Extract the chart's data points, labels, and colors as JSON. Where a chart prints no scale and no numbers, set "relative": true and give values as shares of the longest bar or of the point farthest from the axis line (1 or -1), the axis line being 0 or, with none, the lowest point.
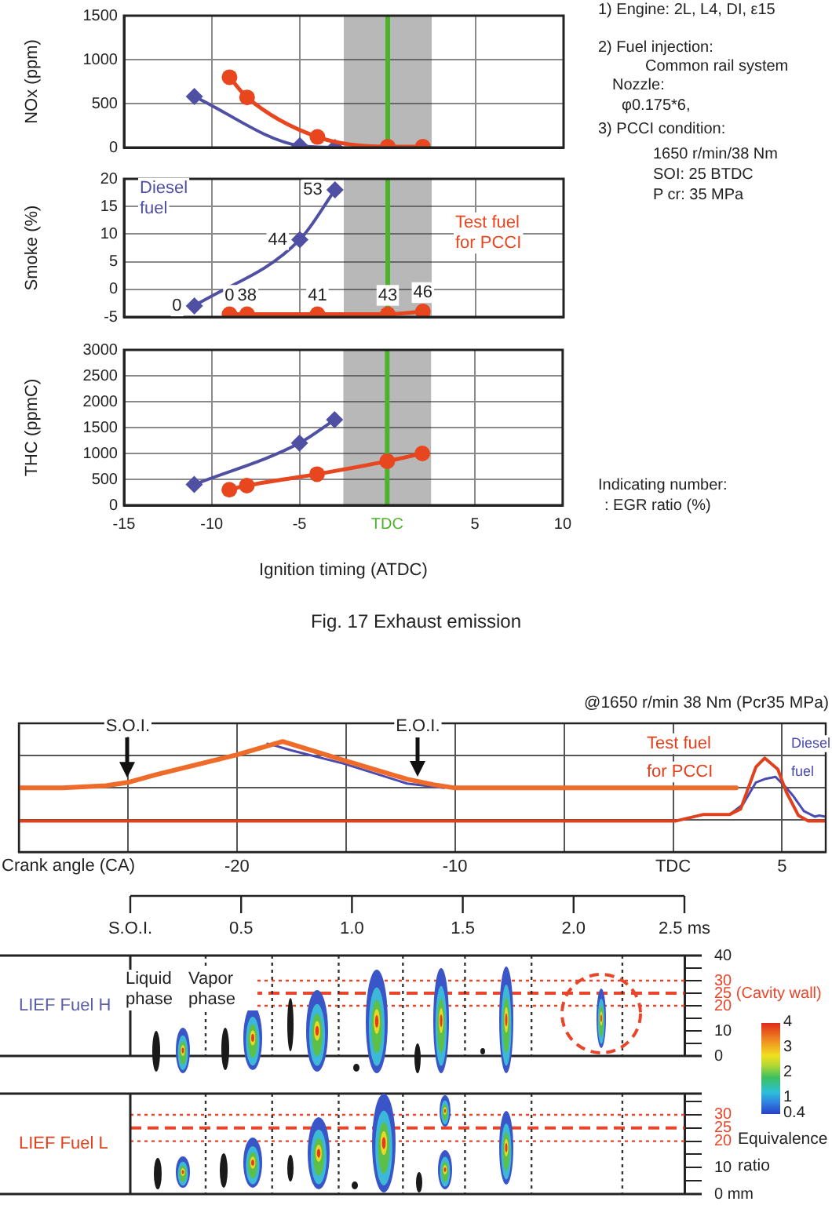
{
  "chart_data": [
    {
      "type": "line",
      "ylabel": "NOx (ppm)",
      "xlim": [
        -15,
        10
      ],
      "xticks": [
        -15,
        -10,
        -5,
        0,
        5,
        10
      ],
      "ylim": [
        0,
        1500
      ],
      "yticks": [
        0,
        500,
        1000,
        1500
      ],
      "grid": true,
      "tick_labels": "y",
      "series": [
        {
          "color": "#4f4fa3",
          "marker": "diamond",
          "x": [
            -11,
            -5,
            -3
          ],
          "values": [
            580,
            20,
            0
          ]
        },
        {
          "color": "#e8461e",
          "marker": "circle",
          "x": [
            -9,
            -8,
            -4,
            0,
            2
          ],
          "values": [
            800,
            570,
            120,
            10,
            10
          ]
        }
      ],
      "bands": [
        {
          "axis": "x",
          "from": -2.5,
          "to": 2.5,
          "color": "#222222"
        }
      ],
      "ref_lines": [
        {
          "axis": "x",
          "value": 0,
          "color": "#4cb32a"
        }
      ],
      "annotations": [
        "1) Engine: 2L, L4, DI, ε15",
        "2) Fuel injection:",
        "Common rail system",
        "Nozzle:",
        "φ0.175*6,",
        "3) PCCI condition:",
        "1650 r/min/38 Nm",
        "SOI: 25 BTDC",
        "P cr: 35 MPa"
      ]
    },
    {
      "type": "line",
      "ylabel": "Smoke (%)",
      "xlim": [
        -15,
        10
      ],
      "xticks": [
        -15,
        -10,
        -5,
        0,
        5,
        10
      ],
      "ylim": [
        -5,
        20
      ],
      "yticks": [
        -5,
        0,
        5,
        10,
        15,
        20
      ],
      "grid": true,
      "tick_labels": "y",
      "series": [
        {
          "name": "Diesel fuel",
          "color": "#4f4fa3",
          "marker": "diamond",
          "x": [
            -11,
            -5,
            -3
          ],
          "values": [
            -3,
            9,
            18
          ]
        },
        {
          "name": "Test fuel for PCCI",
          "color": "#e8461e",
          "marker": "circle",
          "x": [
            -9,
            -8,
            -4,
            0,
            2
          ],
          "values": [
            -4.5,
            -4.5,
            -4.5,
            -4.5,
            -4
          ]
        }
      ],
      "bands": [
        {
          "axis": "x",
          "from": -2.5,
          "to": 2.5,
          "color": "#222222"
        }
      ],
      "ref_lines": [
        {
          "axis": "x",
          "value": 0,
          "color": "#4cb32a"
        }
      ],
      "annotations": [
        {
          "text": "0",
          "x": -11,
          "y": -3
        },
        {
          "text": "44",
          "x": -5,
          "y": 9
        },
        {
          "text": "53",
          "x": -3,
          "y": 18
        },
        {
          "text": "0",
          "x": -9,
          "y": -4.5
        },
        {
          "text": "38",
          "x": -8,
          "y": -4.5
        },
        {
          "text": "41",
          "x": -4,
          "y": -4.5
        },
        {
          "text": "43",
          "x": 0,
          "y": -4.5
        },
        {
          "text": "46",
          "x": 2,
          "y": -4
        }
      ]
    },
    {
      "type": "line",
      "ylabel": "THC (ppmC)",
      "xlabel": "Ignition timing (ATDC)",
      "xlim": [
        -15,
        10
      ],
      "xticks": [
        -15,
        -10,
        -5,
        {
          "value": 0,
          "label": "TDC"
        },
        5,
        10
      ],
      "ylim": [
        0,
        3000
      ],
      "yticks": [
        0,
        500,
        1000,
        1500,
        2000,
        2500,
        3000
      ],
      "grid": true,
      "series": [
        {
          "color": "#4f4fa3",
          "marker": "diamond",
          "x": [
            -11,
            -5,
            -3
          ],
          "values": [
            400,
            1200,
            1650
          ]
        },
        {
          "color": "#e8461e",
          "marker": "circle",
          "x": [
            -9,
            -8,
            -4,
            0,
            2
          ],
          "values": [
            300,
            380,
            600,
            850,
            1000
          ]
        }
      ],
      "bands": [
        {
          "axis": "x",
          "from": -2.5,
          "to": 2.5,
          "color": "#222222"
        }
      ],
      "ref_lines": [
        {
          "axis": "x",
          "value": 0,
          "color": "#4cb32a"
        }
      ],
      "annotations": [
        "Indicating number:",
        ": EGR ratio (%)",
        "Fig. 17 Exhaust emission"
      ]
    },
    {
      "type": "line",
      "subtitle": "@1650 r/min 38 Nm (Pcr35 MPa)",
      "xlabel": "Crank angle (CA)",
      "relative": true,
      "xlim": [
        -30,
        7
      ],
      "xticks": [
        {
          "value": -25,
          "label": null
        },
        -20,
        {
          "value": -15,
          "label": null
        },
        -10,
        {
          "value": -5,
          "label": null
        },
        {
          "value": 0,
          "label": "TDC"
        },
        5
      ],
      "grid": true,
      "series": [
        {
          "color": "#4a4ab0",
          "x": [
            -18.6,
            -18.2,
            -17.5,
            -15.1,
            -12.2,
            -10.5
          ],
          "values": [
            0.98,
            0.96,
            0.92,
            0.8,
            0.62,
            0.58
          ]
        },
        {
          "color": "#ef6b2a",
          "x": [
            -30,
            -28,
            -26,
            -25,
            -23.7,
            -20,
            -17.9,
            -15.1,
            -12.2,
            -11,
            -10,
            2.9
          ],
          "values": [
            0.58,
            0.58,
            0.6,
            0.63,
            0.7,
            0.88,
            1,
            0.83,
            0.66,
            0.61,
            0.58,
            0.58
          ]
        },
        {
          "name": "Diesel fuel",
          "color": "#4a4ab0",
          "x": [
            2.6,
            3.2,
            3.8,
            4.2,
            4.7,
            5.2,
            5.5,
            6,
            6.5,
            6.7,
            7
          ],
          "values": [
            0.34,
            0.43,
            0.63,
            0.66,
            0.68,
            0.58,
            0.51,
            0.37,
            0.32,
            0.33,
            0.32
          ]
        },
        {
          "name": "Test fuel for PCCI",
          "color": "#e0401c",
          "x": [
            -30,
            0.1,
            1.4,
            2.6,
            3.1,
            3.8,
            4.2,
            4.8,
            5.2,
            5.75,
            6.2,
            6.7,
            7
          ],
          "values": [
            0.28,
            0.28,
            0.34,
            0.34,
            0.39,
            0.77,
            0.85,
            0.75,
            0.54,
            0.33,
            0.28,
            0.28,
            0.28
          ]
        }
      ],
      "annotations": [
        {
          "text": "S.O.I.",
          "x": -25,
          "y": 0.63
        },
        {
          "text": "E.O.I.",
          "x": -11.7,
          "y": 0.64
        }
      ]
    },
    {
      "type": "scatter",
      "ylabel": "LIEF Fuel H",
      "color": "#5b5ea6",
      "xlim": [
        0,
        2.5
      ],
      "xticks": [
        {
          "value": 0,
          "label": "S.O.I."
        },
        0.5,
        {
          "value": 1,
          "label": "1.0"
        },
        1.5,
        {
          "value": 2,
          "label": "2.0"
        },
        {
          "value": 2.5,
          "label": "2.5 ms"
        }
      ],
      "ylim": [
        0,
        40
      ],
      "yticks": [
        0,
        {
          "value": 5,
          "label": null
        },
        10,
        {
          "value": 15,
          "label": null
        },
        20,
        {
          "value": 25,
          "label": null
        },
        30,
        {
          "value": 35,
          "label": null
        },
        40
      ],
      "ref_lines": [
        {
          "axis": "y",
          "value": 30,
          "color": "#e8452a",
          "line_style": "dotted"
        },
        {
          "axis": "y",
          "value": 25,
          "label": "25 (Cavity wall)",
          "color": "#e8452a",
          "line_style": "dashed"
        },
        {
          "axis": "y",
          "value": 20,
          "color": "#e8452a",
          "line_style": "dotted"
        },
        {
          "axis": "x",
          "value": 0.34,
          "color": "#333333",
          "line_style": "dotted"
        },
        {
          "axis": "x",
          "value": 0.64,
          "color": "#333333",
          "line_style": "dotted"
        },
        {
          "axis": "x",
          "value": 0.94,
          "color": "#333333",
          "line_style": "dotted"
        },
        {
          "axis": "x",
          "value": 1.23,
          "color": "#333333",
          "line_style": "dotted"
        },
        {
          "axis": "x",
          "value": 1.51,
          "color": "#333333",
          "line_style": "dotted"
        },
        {
          "axis": "x",
          "value": 1.81,
          "color": "#333333",
          "line_style": "dotted"
        },
        {
          "axis": "x",
          "value": 2.22,
          "color": "#333333",
          "line_style": "dotted"
        }
      ],
      "clim": [
        0.4,
        4
      ],
      "cticks": [
        0.4,
        1,
        2,
        3,
        4
      ],
      "clabel": "Equivalence ratio",
      "annotations": [
        "Liquid phase",
        "Vapor phase"
      ]
    },
    {
      "type": "scatter",
      "ylabel": "LIEF Fuel L",
      "color": "#e0401c",
      "xlim": [
        0,
        2.5
      ],
      "tick_labels": "y",
      "ylim": [
        0,
        38
      ],
      "yticks": [
        {
          "value": 0,
          "label": "0 mm"
        },
        {
          "value": 5,
          "label": null
        },
        10,
        {
          "value": 15,
          "label": null
        },
        20,
        {
          "value": 25,
          "label": null
        },
        30,
        {
          "value": 35,
          "label": null
        }
      ],
      "ref_lines": [
        {
          "axis": "y",
          "value": 30,
          "color": "#e8452a",
          "line_style": "dotted"
        },
        {
          "axis": "y",
          "value": 25,
          "label": "25",
          "color": "#e8452a",
          "line_style": "dashed"
        },
        {
          "axis": "y",
          "value": 20,
          "color": "#e8452a",
          "line_style": "dotted"
        },
        {
          "axis": "x",
          "value": 0.34,
          "color": "#333333",
          "line_style": "dotted"
        },
        {
          "axis": "x",
          "value": 0.64,
          "color": "#333333",
          "line_style": "dotted"
        },
        {
          "axis": "x",
          "value": 0.94,
          "color": "#333333",
          "line_style": "dotted"
        },
        {
          "axis": "x",
          "value": 1.23,
          "color": "#333333",
          "line_style": "dotted"
        },
        {
          "axis": "x",
          "value": 1.51,
          "color": "#333333",
          "line_style": "dotted"
        },
        {
          "axis": "x",
          "value": 1.81,
          "color": "#333333",
          "line_style": "dotted"
        },
        {
          "axis": "x",
          "value": 2.22,
          "color": "#333333",
          "line_style": "dotted"
        }
      ]
    }
  ]
}
